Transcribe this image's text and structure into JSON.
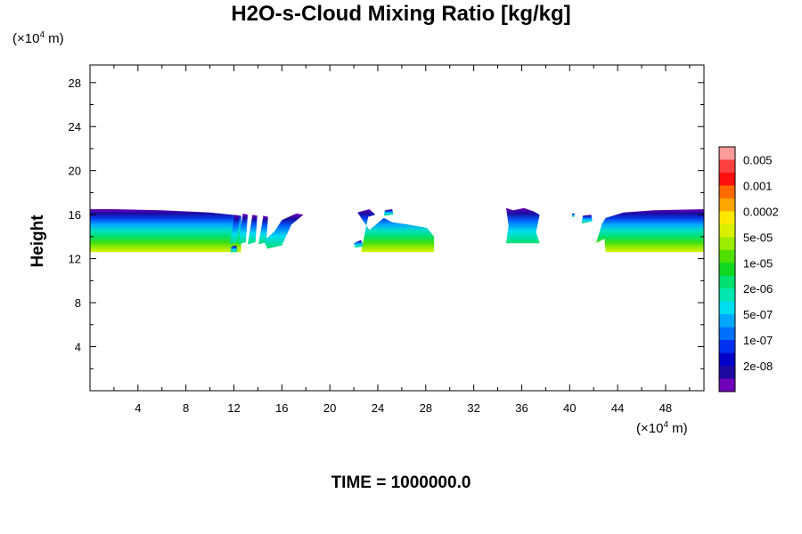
{
  "chart_data": {
    "type": "contour",
    "title": "H2O-s-Cloud Mixing Ratio [kg/kg]",
    "ylabel": "Height",
    "x_unit": {
      "prefix": "(×10",
      "exp": "4",
      "suffix": " m)"
    },
    "y_unit": {
      "prefix": "(×10",
      "exp": "4",
      "suffix": " m)"
    },
    "xlim": [
      0,
      51.2
    ],
    "ylim": [
      0,
      29.6
    ],
    "x_ticks": [
      "4",
      "8",
      "12",
      "16",
      "20",
      "24",
      "28",
      "32",
      "36",
      "40",
      "44",
      "48"
    ],
    "y_ticks": [
      "4",
      "8",
      "12",
      "16",
      "20",
      "24",
      "28"
    ],
    "x_tick_values": [
      4,
      8,
      12,
      16,
      20,
      24,
      28,
      32,
      36,
      40,
      44,
      48
    ],
    "y_tick_values": [
      4,
      8,
      12,
      16,
      20,
      24,
      28
    ],
    "colorbar": {
      "labels": [
        "0.005",
        "0.001",
        "0.0002",
        "5e-05",
        "1e-05",
        "2e-06",
        "5e-07",
        "1e-07",
        "2e-08"
      ],
      "colors": [
        "#ff9a9a",
        "#ff4040",
        "#ff1010",
        "#ff6a00",
        "#ffa500",
        "#ffe800",
        "#d8f000",
        "#9aec00",
        "#50e000",
        "#10d820",
        "#00e070",
        "#00e8b0",
        "#00dcf0",
        "#00a8ff",
        "#0070ff",
        "#0030f0",
        "#0000c8",
        "#1c0aa0",
        "#7000b8"
      ]
    },
    "regions": [
      {
        "x": [
          0,
          12.6
        ],
        "y_bottom": 12.6,
        "y_top": 16.5
      },
      {
        "x": [
          12.6,
          17.8
        ],
        "y_bottom": 12.6,
        "y_top": 16.0
      },
      {
        "x": [
          22.2,
          28.7
        ],
        "y_bottom": 12.6,
        "y_top": 16.4
      },
      {
        "x": [
          34.7,
          37.5
        ],
        "y_bottom": 13.4,
        "y_top": 16.6
      },
      {
        "x": [
          40.2,
          41.3
        ],
        "y_bottom": 15.4,
        "y_top": 16.0
      },
      {
        "x": [
          41.8,
          51.2
        ],
        "y_bottom": 12.6,
        "y_top": 16.5
      }
    ]
  },
  "time_label": "TIME = 1000000.0"
}
